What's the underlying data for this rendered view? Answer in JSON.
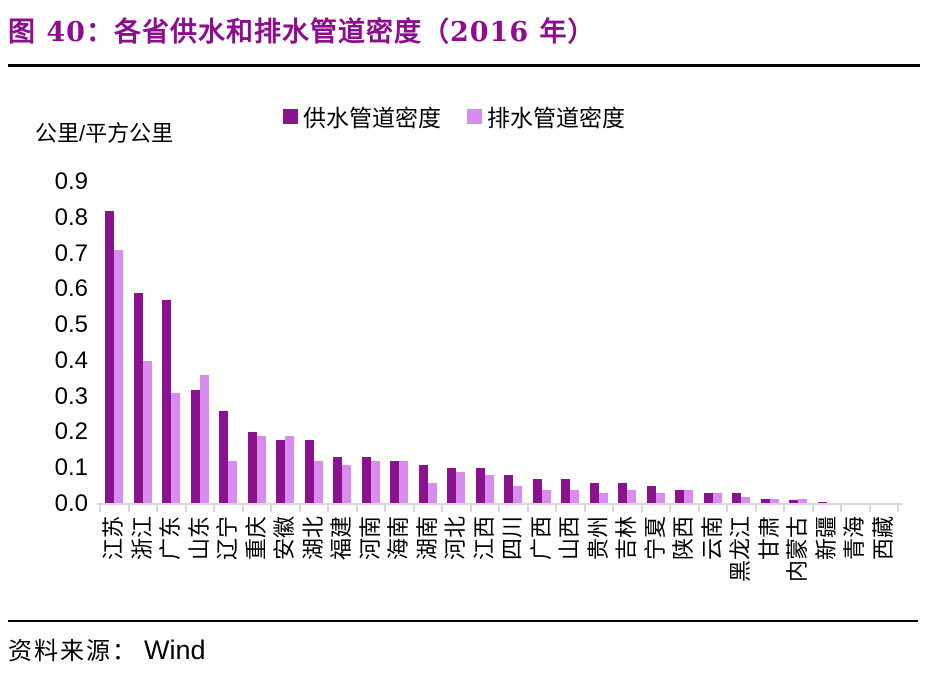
{
  "figure": {
    "title": "图 40：各省供水和排水管道密度（2016 年）",
    "source_label": "资料来源：",
    "source_value": "Wind"
  },
  "colors": {
    "title_accent": "#8E0C8E",
    "supply_bar": "#8B128E",
    "drainage_bar": "#D98CF0",
    "axis_line": "#D9D9D9",
    "rule": "#000000",
    "text": "#000000"
  },
  "chart_data": {
    "type": "bar",
    "title": "各省供水和排水管道密度（2016 年）",
    "unit_label": "公里/平方公里",
    "xlabel": "",
    "ylabel": "公里/平方公里",
    "ylim": [
      0.0,
      0.9
    ],
    "ytick_step": 0.1,
    "ytick_labels": [
      "0.9",
      "0.8",
      "0.7",
      "0.6",
      "0.5",
      "0.4",
      "0.3",
      "0.2",
      "0.1",
      "0.0"
    ],
    "grid": false,
    "legend_position": "top-center",
    "categories": [
      "江苏",
      "浙江",
      "广东",
      "山东",
      "辽宁",
      "重庆",
      "安徽",
      "湖北",
      "福建",
      "河南",
      "海南",
      "湖南",
      "河北",
      "江西",
      "四川",
      "广西",
      "山西",
      "贵州",
      "吉林",
      "宁夏",
      "陕西",
      "云南",
      "黑龙江",
      "甘肃",
      "内蒙古",
      "新疆",
      "青海",
      "西藏"
    ],
    "series": [
      {
        "name": "供水管道密度",
        "color": "#8B128E",
        "values": [
          0.82,
          0.59,
          0.57,
          0.32,
          0.26,
          0.2,
          0.18,
          0.18,
          0.13,
          0.13,
          0.12,
          0.11,
          0.1,
          0.1,
          0.08,
          0.07,
          0.07,
          0.06,
          0.06,
          0.05,
          0.04,
          0.03,
          0.03,
          0.015,
          0.011,
          0.006,
          0.004,
          0.002
        ]
      },
      {
        "name": "排水管道密度",
        "color": "#D98CF0",
        "values": [
          0.71,
          0.4,
          0.31,
          0.36,
          0.12,
          0.19,
          0.19,
          0.12,
          0.11,
          0.12,
          0.12,
          0.06,
          0.09,
          0.08,
          0.05,
          0.04,
          0.04,
          0.03,
          0.04,
          0.03,
          0.04,
          0.03,
          0.02,
          0.015,
          0.013,
          0.004,
          0.002,
          0.001
        ]
      }
    ]
  }
}
